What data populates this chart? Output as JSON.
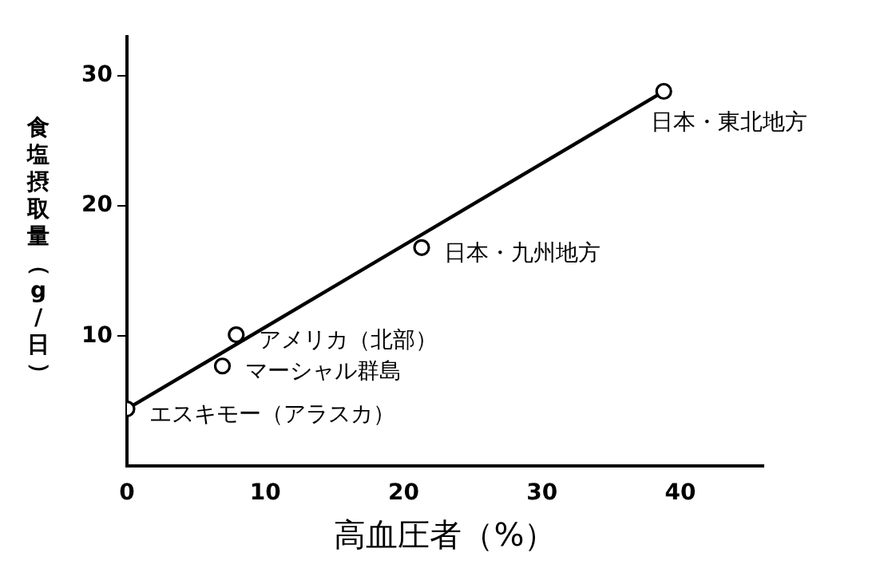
{
  "chart_data": {
    "type": "scatter",
    "xlabel": "高血圧者（%）",
    "ylabel": "食塩摂取量（g/日）",
    "xlim": [
      0,
      46
    ],
    "xticks": [
      0,
      10,
      20,
      30,
      40
    ],
    "ylim": [
      0,
      33
    ],
    "yticks": [
      10,
      20,
      30
    ],
    "grid": false,
    "legend": false,
    "marker": "circle",
    "series": [
      {
        "type": "scatter",
        "color": "#000000",
        "x": [
          0,
          6.9,
          7.9,
          21.3,
          38.8
        ],
        "values": [
          4.4,
          7.7,
          10.1,
          16.8,
          28.8
        ]
      },
      {
        "type": "line",
        "color": "#000000",
        "marker": "none",
        "line_style": "solid",
        "x": [
          0,
          38.8
        ],
        "values": [
          4.4,
          28.8
        ]
      }
    ],
    "annotations": [
      {
        "text": "エスキモー（アラスカ）",
        "x": 0,
        "y": 4.4
      },
      {
        "text": "マーシャル群島",
        "x": 6.9,
        "y": 7.7
      },
      {
        "text": "アメリカ（北部）",
        "x": 7.9,
        "y": 10.1
      },
      {
        "text": "日本・九州地方",
        "x": 21.3,
        "y": 16.8
      },
      {
        "text": "日本・東北地方",
        "x": 38.8,
        "y": 28.8
      }
    ]
  }
}
